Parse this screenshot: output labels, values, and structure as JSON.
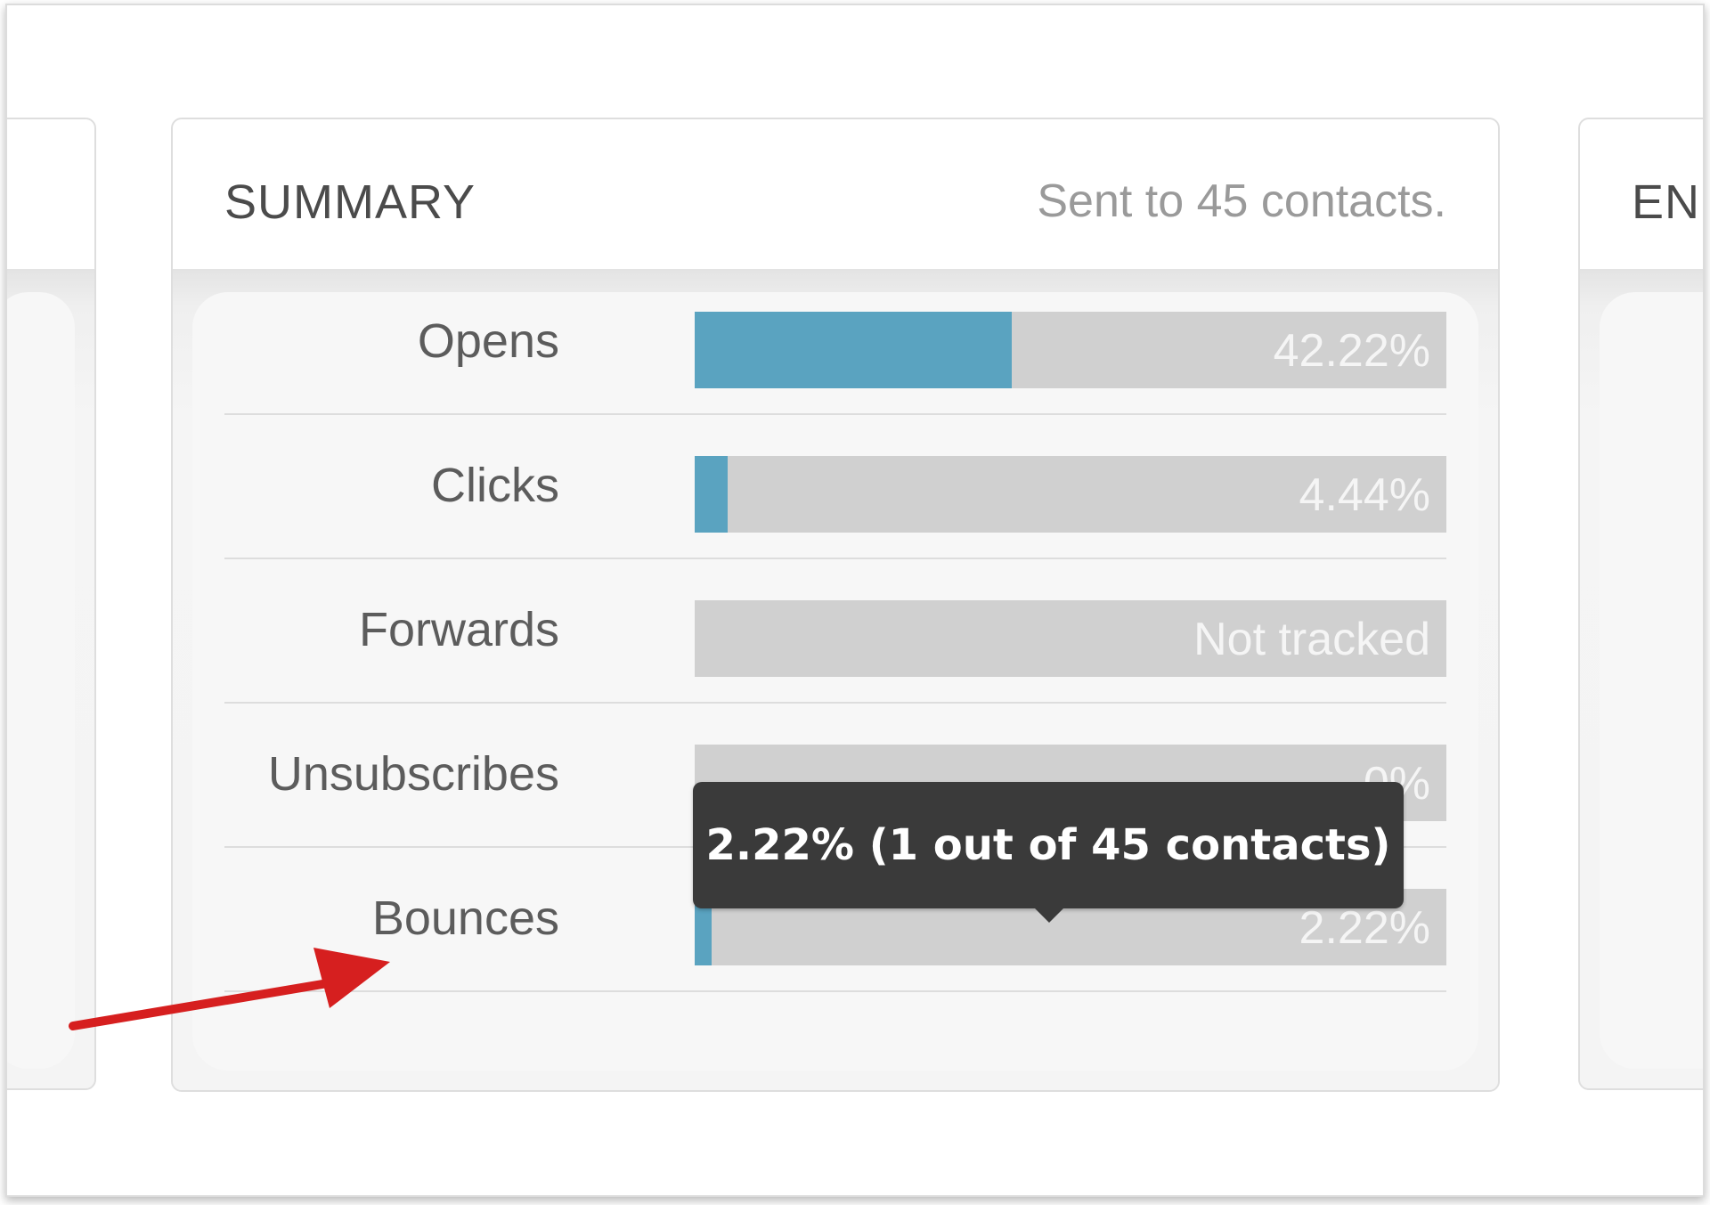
{
  "summary": {
    "title": "SUMMARY",
    "sent_text": "Sent to 45 contacts."
  },
  "right_card": {
    "title_fragment": "EN"
  },
  "rows": [
    {
      "label": "Opens",
      "value_text": "42.22%",
      "fill_percent": 42.22
    },
    {
      "label": "Clicks",
      "value_text": "4.44%",
      "fill_percent": 4.44
    },
    {
      "label": "Forwards",
      "value_text": "Not tracked",
      "fill_percent": 0
    },
    {
      "label": "Unsubscribes",
      "value_text": "0%",
      "fill_percent": 0
    },
    {
      "label": "Bounces",
      "value_text": "2.22%",
      "fill_percent": 2.22
    }
  ],
  "tooltip": {
    "text": "2.22% (1 out of 45 contacts)"
  },
  "colors": {
    "bar_fill": "#5aa3c0",
    "bar_track": "#d0d0d0",
    "tooltip_bg": "#3a3a3a",
    "annotation_arrow": "#d61f1f"
  },
  "annotation": {
    "icon": "red-arrow-icon"
  }
}
